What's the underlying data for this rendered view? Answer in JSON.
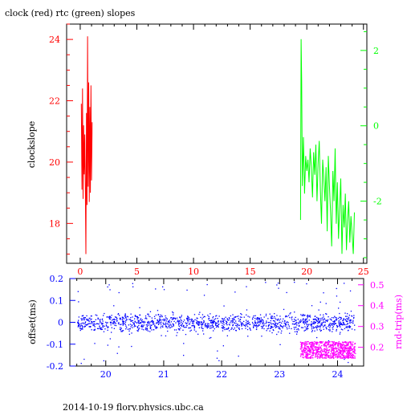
{
  "figure": {
    "title": "clock (red) rtc (green) slopes",
    "footer": "2014-10-19 flory.physics.ubc.ca"
  },
  "colors": {
    "clock": "#ff0000",
    "rtc": "#00ff00",
    "offset": "#0000ff",
    "roundtrip": "#ff00ff",
    "frame": "#000000"
  },
  "chart_data": [
    {
      "type": "line",
      "title": "clock (red) rtc (green) slopes",
      "ylabel": "clockslope",
      "xlim": [
        -1.2,
        25.3
      ],
      "ylim": [
        16.7,
        24.5
      ],
      "y2lim": [
        -3.65,
        2.7
      ],
      "xticks": [
        0,
        5,
        10,
        15,
        20,
        25
      ],
      "yticks": [
        18,
        20,
        22,
        24
      ],
      "y2ticks": [
        -2,
        0,
        2
      ],
      "grid": false,
      "series": [
        {
          "name": "clock",
          "axis": "left",
          "x": [
            0.1,
            0.15,
            0.2,
            0.25,
            0.3,
            0.35,
            0.4,
            0.45,
            0.5,
            0.55,
            0.6,
            0.65,
            0.7,
            0.75,
            0.8,
            0.85,
            0.9,
            0.95,
            1.0,
            1.05
          ],
          "values": [
            21.9,
            19.1,
            22.4,
            18.8,
            21.2,
            19.6,
            20.9,
            19.2,
            17.0,
            21.6,
            18.6,
            24.1,
            19.2,
            22.6,
            18.7,
            21.8,
            19.0,
            22.5,
            19.4,
            21.3
          ]
        },
        {
          "name": "rtc",
          "axis": "right",
          "x": [
            19.45,
            19.5,
            19.55,
            19.6,
            19.7,
            19.8,
            19.9,
            20.0,
            20.1,
            20.2,
            20.3,
            20.4,
            20.5,
            20.6,
            20.7,
            20.8,
            20.9,
            21.0,
            21.1,
            21.2,
            21.3,
            21.4,
            21.5,
            21.6,
            21.7,
            21.8,
            21.9,
            22.0,
            22.1,
            22.2,
            22.3,
            22.4,
            22.5,
            22.6,
            22.7,
            22.8,
            22.9,
            23.0,
            23.1,
            23.2,
            23.3,
            23.4,
            23.5,
            23.6,
            23.7,
            23.8,
            23.9,
            24.0,
            24.1,
            24.2
          ],
          "values": [
            -2.5,
            2.3,
            1.2,
            -1.6,
            -0.3,
            -1.8,
            -0.8,
            -1.2,
            -0.9,
            -1.5,
            -0.6,
            -1.1,
            -1.9,
            -0.7,
            -1.3,
            -0.5,
            -2.0,
            -1.0,
            -0.4,
            -1.7,
            -2.6,
            -0.9,
            -1.4,
            -2.0,
            -1.1,
            -2.8,
            -0.8,
            -1.6,
            -2.3,
            -3.2,
            -1.2,
            -2.0,
            -0.6,
            -2.6,
            -1.5,
            -3.0,
            -2.2,
            -1.4,
            -3.4,
            -2.1,
            -2.7,
            -1.8,
            -3.3,
            -2.5,
            -2.0,
            -3.1,
            -2.4,
            -2.9,
            -3.4,
            -2.3
          ]
        }
      ]
    },
    {
      "type": "scatter",
      "ylabel": "offset(ms)",
      "y2label": "rnd-trip(ms)",
      "xlim": [
        19.38,
        24.45
      ],
      "ylim": [
        -0.2,
        0.2
      ],
      "y2lim": [
        0.11,
        0.53
      ],
      "xticks": [
        20,
        21,
        22,
        23,
        24
      ],
      "yticks": [
        -0.2,
        -0.1,
        0,
        0.1,
        0.2
      ],
      "y2ticks": [
        0.2,
        0.3,
        0.4,
        0.5
      ],
      "grid": false,
      "series": [
        {
          "name": "offset",
          "axis": "left",
          "x_range": [
            19.5,
            24.3
          ],
          "center": 0,
          "spread": 0.04
        },
        {
          "name": "rnd-trip",
          "axis": "right",
          "x_range": [
            23.35,
            24.3
          ],
          "values_range": [
            0.15,
            0.23
          ]
        }
      ]
    }
  ]
}
